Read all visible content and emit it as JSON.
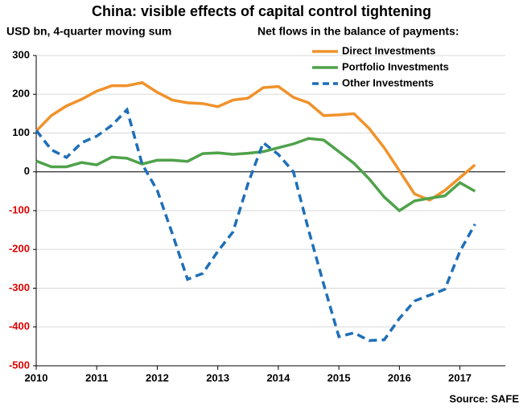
{
  "chart_data": {
    "type": "line",
    "title": "China: visible effects of capital control tightening",
    "subtitle": "USD bn, 4-quarter moving sum",
    "legend_title": "Net flows in the balance of payments:",
    "source": "Source: SAFE",
    "x": [
      2010,
      2010.25,
      2010.5,
      2010.75,
      2011,
      2011.25,
      2011.5,
      2011.75,
      2012,
      2012.25,
      2012.5,
      2012.75,
      2013,
      2013.25,
      2013.5,
      2013.75,
      2014,
      2014.25,
      2014.5,
      2014.75,
      2015,
      2015.25,
      2015.5,
      2015.75,
      2016,
      2016.25,
      2016.5,
      2016.75,
      2017,
      2017.25
    ],
    "series": [
      {
        "name": "Direct Investments",
        "color": "#f0922b",
        "dash": false,
        "values": [
          105,
          145,
          170,
          187,
          208,
          222,
          222,
          230,
          205,
          185,
          178,
          176,
          168,
          185,
          190,
          217,
          220,
          192,
          178,
          145,
          147,
          150,
          112,
          62,
          3,
          -57,
          -73,
          -48,
          -15,
          18
        ]
      },
      {
        "name": "Portfolio Investments",
        "color": "#4fa24a",
        "dash": false,
        "values": [
          28,
          13,
          13,
          24,
          18,
          38,
          35,
          20,
          30,
          30,
          27,
          47,
          49,
          45,
          48,
          52,
          62,
          72,
          86,
          82,
          52,
          22,
          -18,
          -65,
          -100,
          -75,
          -68,
          -62,
          -28,
          -50
        ]
      },
      {
        "name": "Other Investments",
        "color": "#1f6fb8",
        "dash": true,
        "values": [
          107,
          57,
          37,
          75,
          92,
          120,
          160,
          20,
          -48,
          -160,
          -277,
          -262,
          -205,
          -155,
          -30,
          75,
          45,
          0,
          -150,
          -290,
          -425,
          -415,
          -435,
          -433,
          -378,
          -333,
          -318,
          -303,
          -205,
          -135
        ]
      }
    ],
    "xlim": [
      2010,
      2017.75
    ],
    "xticks": [
      2010,
      2011,
      2012,
      2013,
      2014,
      2015,
      2016,
      2017
    ],
    "ylim": [
      -500,
      300
    ],
    "yticks": [
      300,
      200,
      100,
      0,
      -100,
      -200,
      -300,
      -400,
      -500
    ],
    "grid": true,
    "negative_tick_color": "#e00000"
  }
}
